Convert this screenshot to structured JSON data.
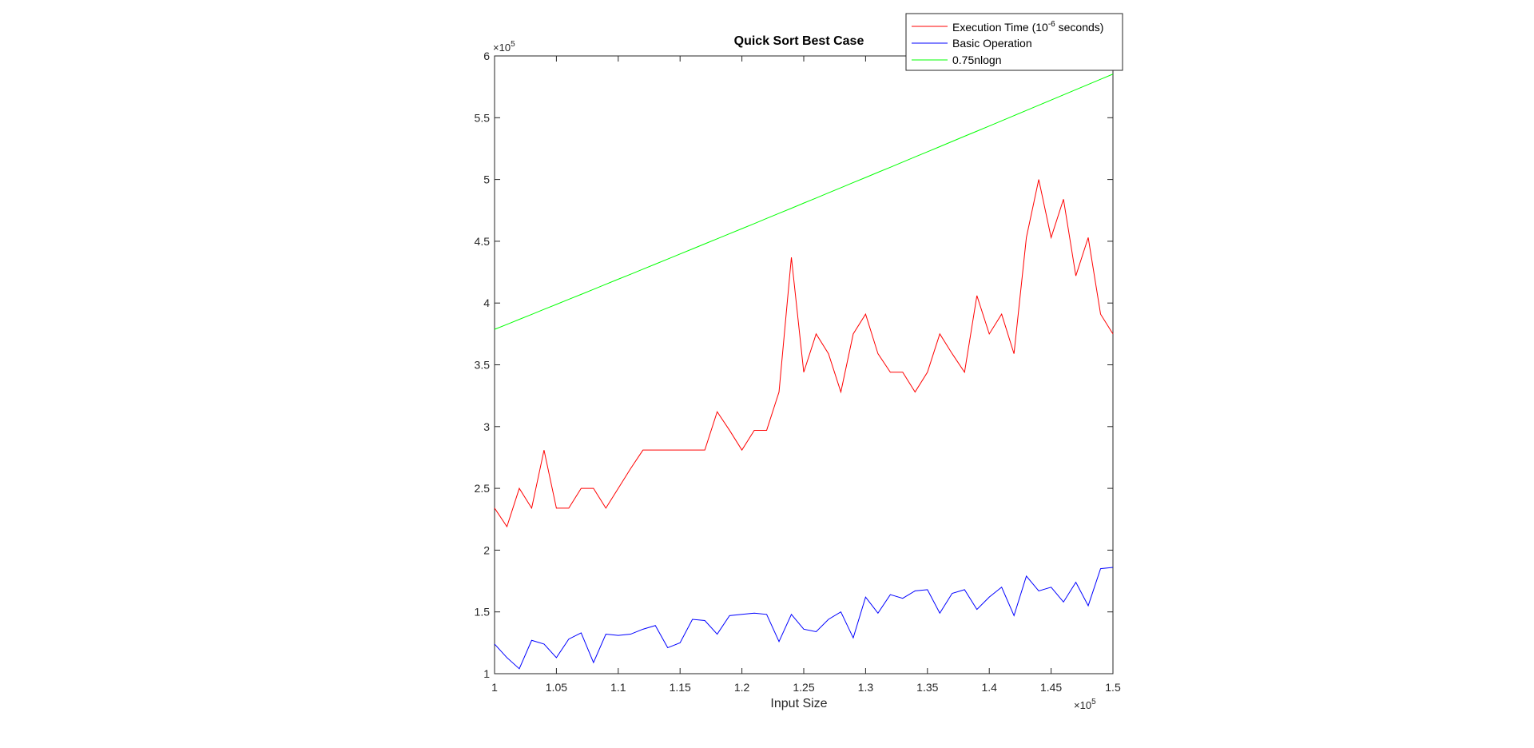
{
  "chart_data": {
    "type": "line",
    "title": "Quick Sort Best Case",
    "xlabel": "Input Size",
    "ylabel": "",
    "x_exponent": "×10",
    "x_exponent_power": "5",
    "y_exponent": "×10",
    "y_exponent_power": "5",
    "xlim": [
      100000,
      150000
    ],
    "ylim": [
      100000,
      600000
    ],
    "x_ticks": [
      100000,
      105000,
      110000,
      115000,
      120000,
      125000,
      130000,
      135000,
      140000,
      145000,
      150000
    ],
    "x_tick_labels": [
      "1",
      "1.05",
      "1.1",
      "1.15",
      "1.2",
      "1.25",
      "1.3",
      "1.35",
      "1.4",
      "1.45",
      "1.5"
    ],
    "y_ticks": [
      100000,
      150000,
      200000,
      250000,
      300000,
      350000,
      400000,
      450000,
      500000,
      550000,
      600000
    ],
    "y_tick_labels": [
      "1",
      "1.5",
      "2",
      "2.5",
      "3",
      "3.5",
      "4",
      "4.5",
      "5",
      "5.5",
      "6"
    ],
    "grid": false,
    "legend_position": "top-right",
    "x": [
      100000,
      101000,
      102000,
      103000,
      104000,
      105000,
      106000,
      107000,
      108000,
      109000,
      110000,
      111000,
      112000,
      113000,
      114000,
      115000,
      116000,
      117000,
      118000,
      119000,
      120000,
      121000,
      122000,
      123000,
      124000,
      125000,
      126000,
      127000,
      128000,
      129000,
      130000,
      131000,
      132000,
      133000,
      134000,
      135000,
      136000,
      137000,
      138000,
      139000,
      140000,
      141000,
      142000,
      143000,
      144000,
      145000,
      146000,
      147000,
      148000,
      149000,
      150000
    ],
    "series": [
      {
        "name": "Execution Time (10^6 seconds)",
        "legend_base": "Execution Time (10",
        "legend_sup": "-6",
        "legend_tail": " seconds)",
        "color": "#ff0000",
        "values": [
          234000,
          219000,
          250000,
          234000,
          281000,
          234000,
          234000,
          250000,
          250000,
          234000,
          250000,
          266000,
          281000,
          281000,
          281000,
          281000,
          281000,
          281000,
          312000,
          297000,
          281000,
          297000,
          297000,
          328000,
          437000,
          344000,
          375000,
          359000,
          328000,
          375000,
          391000,
          359000,
          344000,
          344000,
          328000,
          344000,
          375000,
          359000,
          344000,
          406000,
          375000,
          391000,
          359000,
          453000,
          500000,
          453000,
          484000,
          422000,
          453000,
          391000,
          375000
        ]
      },
      {
        "name": "Basic Operation",
        "color": "#0000ff",
        "values": [
          124000,
          113000,
          104000,
          127000,
          124000,
          113000,
          128000,
          133000,
          109000,
          132000,
          131000,
          132000,
          136000,
          139000,
          121000,
          125000,
          144000,
          143000,
          132000,
          147000,
          148000,
          149000,
          148000,
          126000,
          148000,
          136000,
          134000,
          144000,
          150000,
          129000,
          162000,
          149000,
          164000,
          161000,
          167000,
          168000,
          149000,
          165000,
          168000,
          152000,
          162000,
          170000,
          147000,
          179000,
          167000,
          170000,
          158000,
          174000,
          155000,
          185000,
          186000
        ]
      },
      {
        "name": "0.75nlogn",
        "color": "#00ff00",
        "values": [
          378700,
          382700,
          386800,
          390800,
          394900,
          398900,
          403000,
          407000,
          411100,
          415200,
          419300,
          423300,
          427400,
          431500,
          435600,
          439700,
          443800,
          447900,
          452000,
          456100,
          460200,
          464300,
          468500,
          472600,
          476700,
          480900,
          485000,
          489200,
          493300,
          497500,
          501600,
          505800,
          509900,
          514100,
          518300,
          522400,
          526600,
          530800,
          535000,
          539100,
          543300,
          547500,
          551700,
          555900,
          560100,
          564300,
          568500,
          572700,
          576900,
          581100,
          585300
        ]
      }
    ]
  }
}
